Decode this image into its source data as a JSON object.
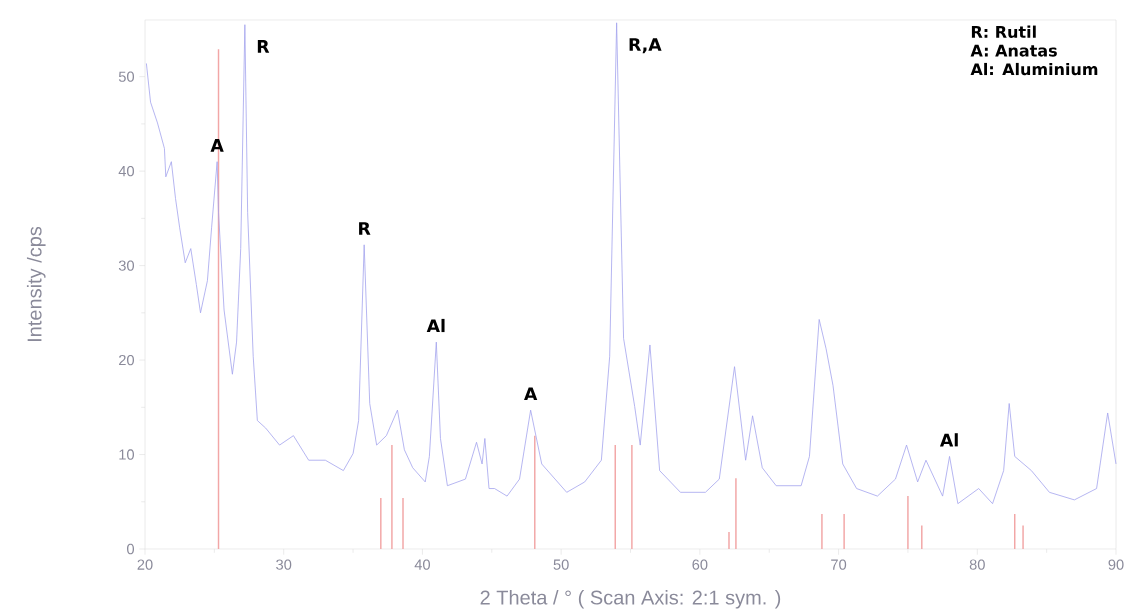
{
  "chart_data": {
    "type": "line",
    "xlabel": "2 Theta / °   ( Scan Axis: 2:1 sym. )",
    "ylabel": "Intensity /cps",
    "xlim": [
      20,
      90
    ],
    "ylim": [
      0,
      56
    ],
    "xticks": [
      20,
      30,
      40,
      50,
      60,
      70,
      80,
      90
    ],
    "yticks": [
      0,
      10,
      20,
      30,
      40,
      50
    ],
    "series": [
      {
        "color": "#a3a3ee",
        "x": [
          20.1,
          20.4,
          20.9,
          21.4,
          21.5,
          21.9,
          22.2,
          22.5,
          22.9,
          23.3,
          23.7,
          24.0,
          24.5,
          24.8,
          25.2,
          25.3,
          25.7,
          26.3,
          26.6,
          26.9,
          27.2,
          27.4,
          27.8,
          28.1,
          28.7,
          29.7,
          30.7,
          31.8,
          33.0,
          34.3,
          35.0,
          35.4,
          35.8,
          36.2,
          36.7,
          37.4,
          38.2,
          38.7,
          39.3,
          40.2,
          40.5,
          41.0,
          41.3,
          41.8,
          43.1,
          43.9,
          44.3,
          44.5,
          44.8,
          45.2,
          46.1,
          47.0,
          47.8,
          48.6,
          50.4,
          51.7,
          52.9,
          53.5,
          54.0,
          54.5,
          55.3,
          55.7,
          56.4,
          57.1,
          58.6,
          60.4,
          61.4,
          62.5,
          63.3,
          63.8,
          64.5,
          65.5,
          67.3,
          67.9,
          68.6,
          69.1,
          69.6,
          70.3,
          71.3,
          72.8,
          74.1,
          74.9,
          75.7,
          76.3,
          77.5,
          78.0,
          78.6,
          80.1,
          81.1,
          81.9,
          82.3,
          82.7,
          83.9,
          85.2,
          87.0,
          88.6,
          89.4,
          90.0
        ],
        "values": [
          51.4,
          47.3,
          45.1,
          42.4,
          39.4,
          41,
          37.1,
          34,
          30.3,
          31.8,
          28,
          25,
          28.4,
          34,
          41,
          35.6,
          25.3,
          18.5,
          21.9,
          31.8,
          55.5,
          35.6,
          20.4,
          13.6,
          12.8,
          11,
          12,
          9.4,
          9.4,
          8.3,
          10.1,
          13.6,
          32.2,
          15.4,
          11,
          12,
          14.7,
          10.5,
          8.6,
          7.1,
          9.8,
          21.9,
          11.7,
          6.7,
          7.4,
          11.3,
          9,
          11.7,
          6.4,
          6.4,
          5.6,
          7.4,
          14.7,
          9,
          6,
          7.1,
          9.4,
          20.4,
          55.7,
          22.3,
          15.1,
          11,
          21.6,
          8.3,
          6,
          6,
          7.4,
          19.3,
          9.4,
          14.1,
          8.6,
          6.7,
          6.7,
          9.8,
          24.3,
          21.2,
          17.3,
          9,
          6.4,
          5.6,
          7.4,
          11,
          7.1,
          9.4,
          5.6,
          9.8,
          4.8,
          6.4,
          4.8,
          8.3,
          15.4,
          9.8,
          8.3,
          6,
          5.2,
          6.4,
          14.4,
          9
        ]
      },
      {
        "type": "bar",
        "color": "#f2a6a6",
        "x": [
          25.3,
          37.0,
          37.8,
          38.6,
          48.1,
          53.9,
          55.1,
          62.1,
          62.6,
          68.8,
          70.4,
          75.0,
          76.0,
          82.7,
          83.3
        ],
        "values": [
          52.9,
          5.4,
          11,
          5.4,
          12,
          11,
          11,
          1.8,
          7.5,
          3.7,
          3.7,
          5.6,
          2.5,
          3.7,
          2.5
        ]
      }
    ],
    "annotations": [
      {
        "text": "A",
        "x": 25.2,
        "y": 41
      },
      {
        "text": "R",
        "x": 27.2,
        "y": 55.5
      },
      {
        "text": "R",
        "x": 35.8,
        "y": 32.2
      },
      {
        "text": "Al",
        "x": 41.0,
        "y": 21.9
      },
      {
        "text": "A",
        "x": 47.8,
        "y": 14.7
      },
      {
        "text": "R,A",
        "x": 54.0,
        "y": 55.7
      },
      {
        "text": "Al",
        "x": 78.0,
        "y": 9.8
      },
      "R:   Rutil",
      "A:   Anatas",
      "Al:   Aluminium"
    ]
  }
}
